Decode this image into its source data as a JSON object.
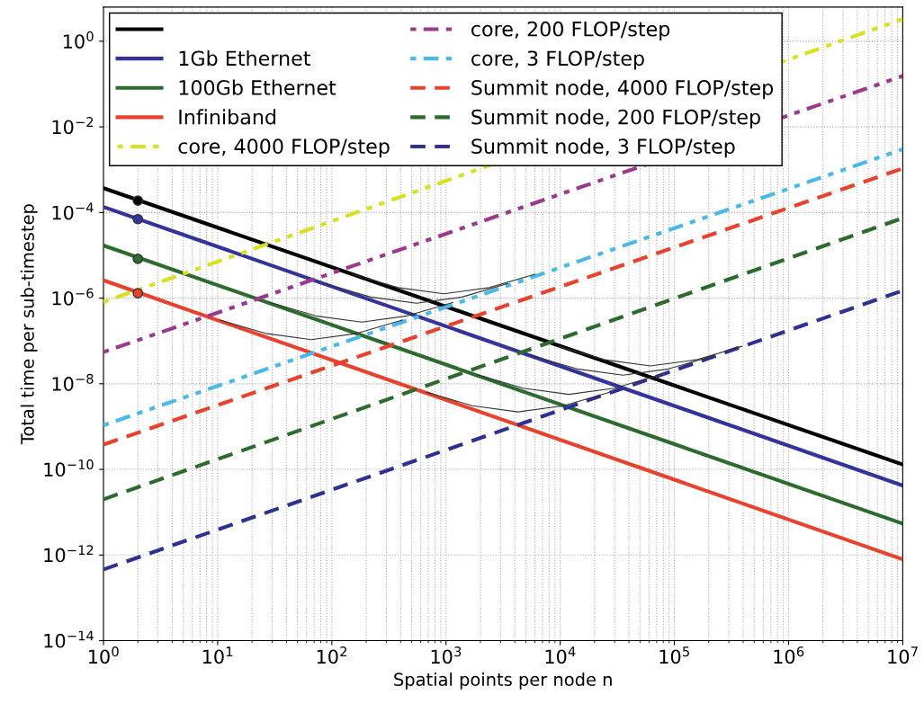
{
  "chart_data": {
    "type": "line",
    "xlabel": "Spatial points per node n",
    "ylabel": "Total time per sub-timestep",
    "log": "xy",
    "grid": true,
    "legend": "top left",
    "xlim": [
      1,
      10000000
    ],
    "ylim": [
      1e-14,
      6.3
    ],
    "xticks": [
      {
        "value": 1,
        "label": "10$^{0}$"
      },
      {
        "value": 10,
        "label": "10$^{1}$"
      },
      {
        "value": 100,
        "label": "10$^{2}$"
      },
      {
        "value": 1000,
        "label": "10$^{3}$"
      },
      {
        "value": 10000,
        "label": "10$^{4}$"
      },
      {
        "value": 100000,
        "label": "10$^{5}$"
      },
      {
        "value": 1000000,
        "label": "10$^{6}$"
      },
      {
        "value": 10000000,
        "label": "10$^{7}$"
      }
    ],
    "yticks": [
      {
        "value": 1e-14,
        "label": "10$^{−14}$"
      },
      {
        "value": 1e-12,
        "label": "10$^{−12}$"
      },
      {
        "value": 1e-10,
        "label": "10$^{−10}$"
      },
      {
        "value": 1e-08,
        "label": "10$^{−8}$"
      },
      {
        "value": 1e-06,
        "label": "10$^{−6}$"
      },
      {
        "value": 0.0001,
        "label": "10$^{−4}$"
      },
      {
        "value": 0.01,
        "label": "10$^{−2}$"
      },
      {
        "value": 1,
        "label": "10$^{0}$"
      }
    ],
    "series": [
      {
        "color": "#000000",
        "line_style": "solid",
        "x": [
          1,
          10000000
        ],
        "values": [
          0.00037,
          1.3e-10
        ]
      },
      {
        "name": "1Gb Ethernet",
        "color": "#33339a",
        "line_style": "solid",
        "x": [
          1,
          10000000
        ],
        "values": [
          0.000135,
          4.2e-11
        ]
      },
      {
        "name": "100Gb Ethernet",
        "color": "#2d6a2d",
        "line_style": "solid",
        "x": [
          1,
          10000000
        ],
        "values": [
          1.7e-05,
          5.4e-12
        ]
      },
      {
        "name": "Infiniband",
        "color": "#e8412c",
        "line_style": "solid",
        "x": [
          1,
          10000000
        ],
        "values": [
          2.6e-06,
          7.9e-13
        ]
      },
      {
        "name": "core, 4000 FLOP/step",
        "color": "#d8e020",
        "line_style": "dotted",
        "x": [
          1,
          10000000
        ],
        "values": [
          8.1e-07,
          3.3
        ]
      },
      {
        "name": "core, 200 FLOP/step",
        "color": "#9b3a8a",
        "line_style": "dotted",
        "x": [
          1,
          10000000
        ],
        "values": [
          5.5e-08,
          0.155
        ]
      },
      {
        "name": "core, 3 FLOP/step",
        "color": "#4ab8e8",
        "line_style": "dotted",
        "x": [
          1,
          10000000
        ],
        "values": [
          1.07e-09,
          0.003
        ]
      },
      {
        "name": "Summit node, 4000 FLOP/step",
        "color": "#e8412c",
        "line_style": "dashed",
        "x": [
          1,
          10000000
        ],
        "values": [
          3.8e-10,
          0.00107
        ]
      },
      {
        "name": "Summit node, 200 FLOP/step",
        "color": "#2d6a2d",
        "line_style": "dashed",
        "x": [
          1,
          10000000
        ],
        "values": [
          2e-11,
          7.4e-05
        ]
      },
      {
        "name": "Summit node, 3 FLOP/step",
        "color": "#2e3192",
        "line_style": "dashed",
        "x": [
          1,
          10000000
        ],
        "values": [
          4.6e-13,
          1.5e-06
        ]
      },
      {
        "type": "scatter",
        "marker": "circle",
        "colors": [
          "#000000",
          "#33339a",
          "#2d6a2d",
          "#e8412c"
        ],
        "x": [
          2,
          2,
          2,
          2
        ],
        "values": [
          0.00019,
          7e-05,
          8.3e-06,
          1.3e-06
        ]
      },
      {
        "color": "#333333",
        "line_style": "solid",
        "x": [
          9750,
          24600,
          61700,
          155000,
          389000
        ],
        "values": [
          7.45e-08,
          3.63e-08,
          2.6e-08,
          3.63e-08,
          7.45e-08
        ]
      },
      {
        "color": "#333333",
        "line_style": "solid",
        "x": [
          5600,
          14100,
          35500,
          89000,
          224000
        ],
        "values": [
          4.55e-08,
          2.22e-08,
          1.59e-08,
          2.22e-08,
          4.55e-08
        ]
      },
      {
        "color": "#333333",
        "line_style": "solid",
        "x": [
          1880,
          4740,
          11900,
          29900,
          75000
        ],
        "values": [
          1.62e-08,
          7.87e-09,
          5.64e-09,
          7.87e-09,
          1.62e-08
        ]
      },
      {
        "color": "#333333",
        "line_style": "solid",
        "x": [
          675,
          1700,
          4270,
          10700,
          26900
        ],
        "values": [
          6.3e-09,
          3.07e-09,
          2.2e-09,
          3.07e-09,
          6.3e-09
        ]
      },
      {
        "color": "#333333",
        "line_style": "solid",
        "x": [
          151,
          380,
          955,
          2400,
          6030
        ],
        "values": [
          3.62e-06,
          1.76e-06,
          1.26e-06,
          1.76e-06,
          3.62e-06
        ]
      },
      {
        "color": "#333333",
        "line_style": "solid",
        "x": [
          87,
          219,
          550,
          1380,
          3470
        ],
        "values": [
          2.18e-06,
          1.06e-06,
          7.6e-07,
          1.06e-06,
          2.18e-06
        ]
      },
      {
        "color": "#333333",
        "line_style": "solid",
        "x": [
          28.8,
          72.4,
          182,
          457,
          1150
        ],
        "values": [
          7.9e-07,
          3.85e-07,
          2.76e-07,
          3.85e-07,
          7.9e-07
        ]
      },
      {
        "color": "#333333",
        "line_style": "solid",
        "x": [
          10.4,
          26.3,
          66,
          166,
          416
        ],
        "values": [
          3.08e-07,
          1.5e-07,
          1.07e-07,
          1.5e-07,
          3.08e-07
        ]
      }
    ]
  }
}
